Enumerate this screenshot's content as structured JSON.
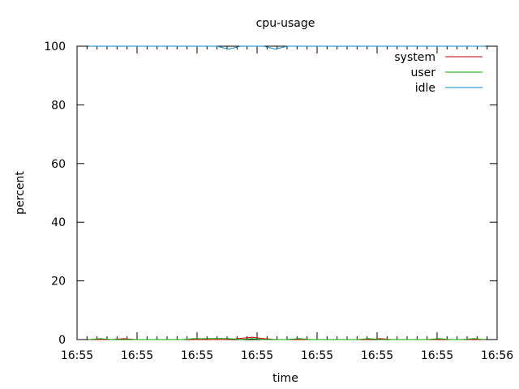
{
  "chart_data": {
    "type": "line",
    "title": "cpu-usage",
    "xlabel": "time",
    "ylabel": "percent",
    "ylim": [
      0,
      100
    ],
    "yticks": [
      0,
      20,
      40,
      60,
      80,
      100
    ],
    "xtick_labels": [
      "16:55",
      "16:55",
      "16:55",
      "16:55",
      "16:55",
      "16:55",
      "16:55",
      "16:56"
    ],
    "x": [
      0.8,
      1.6,
      2.4,
      3.2,
      4.0,
      4.8,
      5.6,
      6.4,
      7.2,
      8.0,
      8.8,
      9.6,
      10.4,
      11.2,
      12.0,
      12.8,
      13.6,
      14.4,
      15.2,
      16.0,
      16.8,
      17.6,
      18.4,
      19.2,
      20.0,
      20.8,
      21.6,
      22.4,
      23.2,
      24.0,
      24.8,
      25.6,
      26.4,
      27.2,
      28.0
    ],
    "legend_position": "top-right",
    "grid": false,
    "series": [
      {
        "name": "system",
        "color": "#cc0000",
        "values": [
          0,
          0,
          0,
          0.3,
          0,
          0,
          0,
          0,
          0,
          0,
          0,
          0,
          0,
          0.4,
          0.8,
          0.3,
          0,
          0,
          0,
          0,
          0,
          0,
          0,
          0,
          0,
          0.3,
          0,
          0,
          0,
          0,
          0,
          0,
          0,
          0,
          0
        ]
      },
      {
        "name": "user",
        "color": "#00aa00",
        "values": [
          0,
          0.3,
          0,
          0,
          0,
          0,
          0,
          0,
          0,
          0.3,
          0.3,
          0.4,
          0.3,
          0,
          0.3,
          0,
          0,
          0,
          0.3,
          0,
          0,
          0,
          0,
          0,
          0.3,
          0,
          0,
          0,
          0,
          0,
          0.3,
          0,
          0,
          0.3,
          0
        ]
      },
      {
        "name": "idle",
        "color": "#0088cc",
        "values": [
          100,
          100,
          100,
          100,
          100,
          100,
          100,
          100,
          100,
          100,
          100,
          100,
          99,
          100,
          100,
          100,
          99,
          100,
          100,
          100,
          100,
          100,
          100,
          100,
          100,
          100,
          100,
          100,
          100,
          100,
          100,
          100,
          100,
          100,
          100
        ]
      }
    ]
  }
}
